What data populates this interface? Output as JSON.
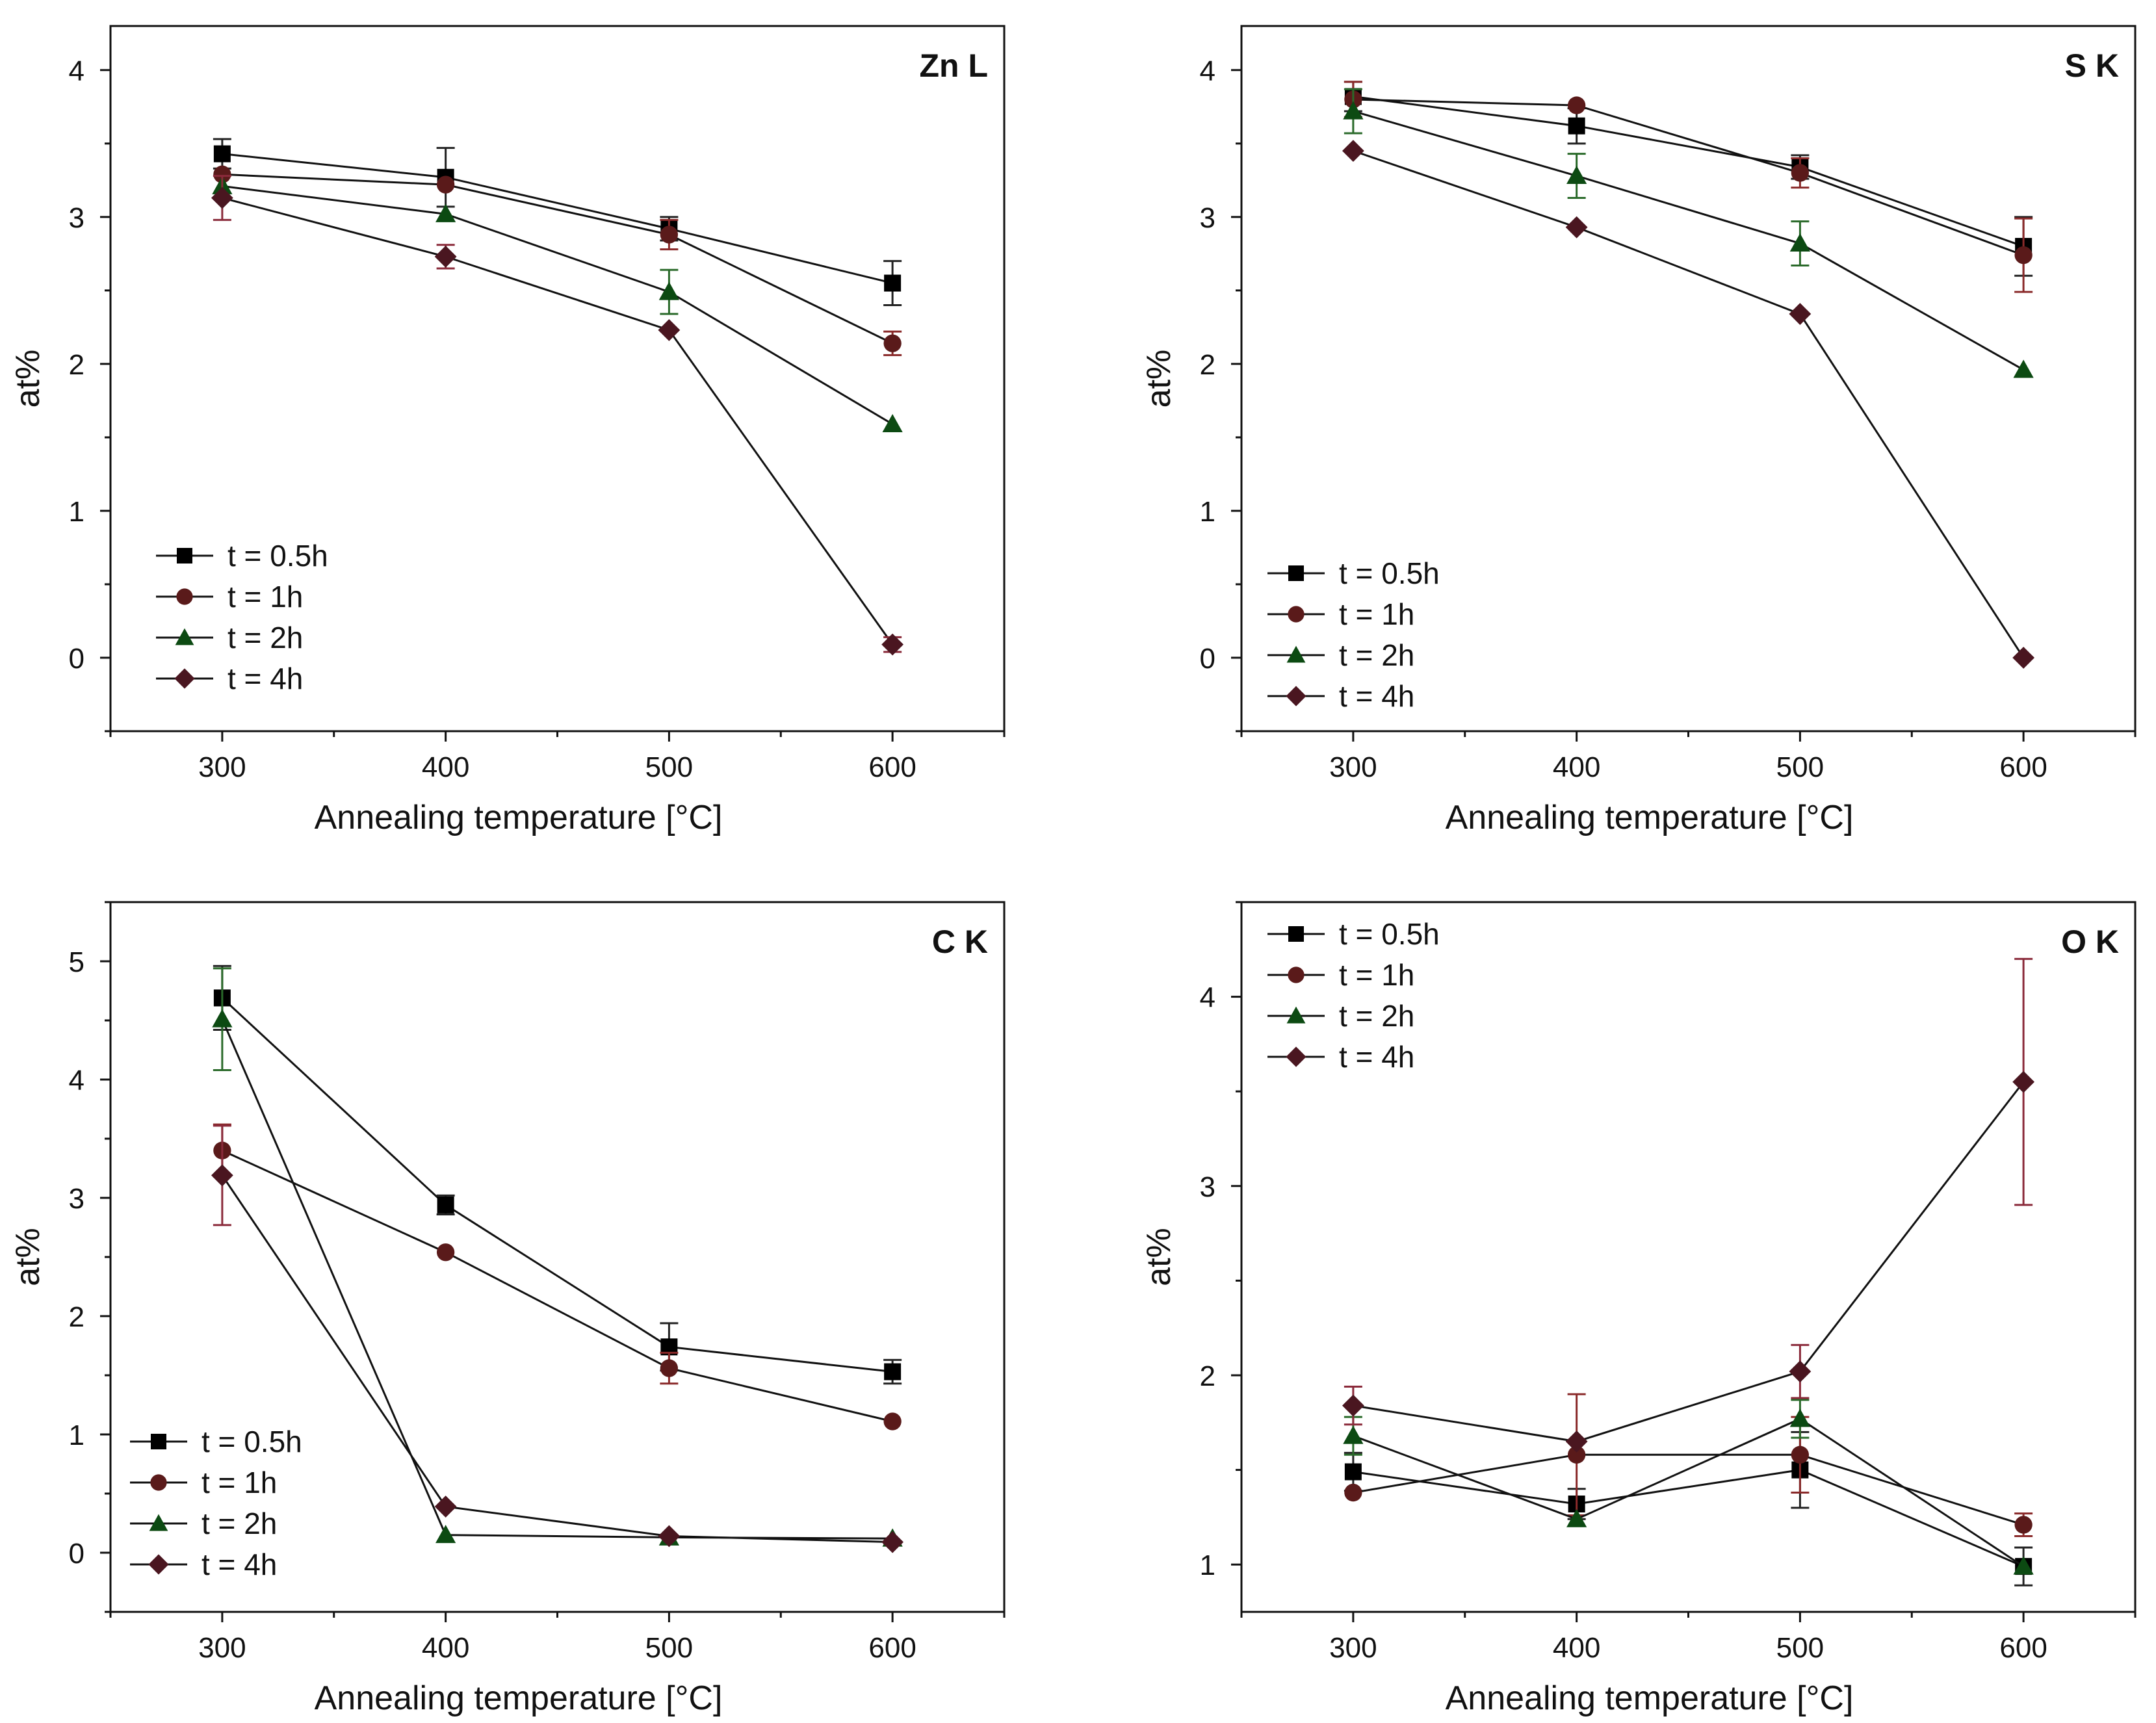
{
  "colors": {
    "t = 0.5h": "#000000",
    "t = 1h": "#5a1a1a",
    "t = 2h": "#0c4a12",
    "t = 4h": "#4a1620",
    "axis": "#111111",
    "error_0.5h": "#222222",
    "error_1h": "#8a2a2a",
    "error_2h": "#2a6a2a",
    "error_4h": "#8a2a3a"
  },
  "markers": {
    "t = 0.5h": "square",
    "t = 1h": "circle",
    "t = 2h": "triangle",
    "t = 4h": "diamond"
  },
  "chart_data": [
    {
      "type": "line",
      "title": "Zn L",
      "xlabel": "Annealing temperature [°C]",
      "ylabel": "at%",
      "x": [
        300,
        400,
        500,
        600
      ],
      "xlim": [
        250,
        650
      ],
      "ylim": [
        -0.5,
        4.3
      ],
      "xticks": [
        300,
        400,
        500,
        600
      ],
      "yticks": [
        0,
        1,
        2,
        3,
        4
      ],
      "legend": "bottom-left",
      "series": [
        {
          "name": "t = 0.5h",
          "values": [
            3.43,
            3.27,
            2.92,
            2.55
          ],
          "errors": [
            0.1,
            0.2,
            0.08,
            0.15
          ]
        },
        {
          "name": "t = 1h",
          "values": [
            3.29,
            3.22,
            2.88,
            2.14
          ],
          "errors": [
            0.0,
            0.0,
            0.1,
            0.08
          ]
        },
        {
          "name": "t = 2h",
          "values": [
            3.21,
            3.02,
            2.49,
            1.59
          ],
          "errors": [
            0.0,
            0.0,
            0.15,
            0.0
          ]
        },
        {
          "name": "t = 4h",
          "values": [
            3.13,
            2.73,
            2.23,
            0.09
          ],
          "errors": [
            0.15,
            0.08,
            0.0,
            0.05
          ]
        }
      ]
    },
    {
      "type": "line",
      "title": "S K",
      "xlabel": "Annealing temperature [°C]",
      "ylabel": "at%",
      "x": [
        300,
        400,
        500,
        600
      ],
      "xlim": [
        250,
        650
      ],
      "ylim": [
        -0.5,
        4.3
      ],
      "xticks": [
        300,
        400,
        500,
        600
      ],
      "yticks": [
        0,
        1,
        2,
        3,
        4
      ],
      "legend": "bottom-left",
      "series": [
        {
          "name": "t = 0.5h",
          "values": [
            3.82,
            3.62,
            3.34,
            2.8
          ],
          "errors": [
            0.1,
            0.12,
            0.08,
            0.2
          ]
        },
        {
          "name": "t = 1h",
          "values": [
            3.8,
            3.76,
            3.3,
            2.74
          ],
          "errors": [
            0.12,
            0.0,
            0.1,
            0.25
          ]
        },
        {
          "name": "t = 2h",
          "values": [
            3.72,
            3.28,
            2.82,
            1.96
          ],
          "errors": [
            0.15,
            0.15,
            0.15,
            0.0
          ]
        },
        {
          "name": "t = 4h",
          "values": [
            3.45,
            2.93,
            2.34,
            0.0
          ],
          "errors": [
            0.0,
            0.0,
            0.0,
            0.0
          ]
        }
      ]
    },
    {
      "type": "line",
      "title": "C K",
      "xlabel": "Annealing temperature [°C]",
      "ylabel": "at%",
      "x": [
        300,
        400,
        500,
        600
      ],
      "xlim": [
        250,
        650
      ],
      "ylim": [
        -0.5,
        5.5
      ],
      "xticks": [
        300,
        400,
        500,
        600
      ],
      "yticks": [
        0,
        1,
        2,
        3,
        4,
        5
      ],
      "legend": "bottom-left",
      "series": [
        {
          "name": "t = 0.5h",
          "values": [
            4.69,
            2.94,
            1.74,
            1.53
          ],
          "errors": [
            0.27,
            0.08,
            0.2,
            0.1
          ]
        },
        {
          "name": "t = 1h",
          "values": [
            3.4,
            2.54,
            1.56,
            1.11
          ],
          "errors": [
            0.22,
            0.0,
            0.13,
            0.0
          ]
        },
        {
          "name": "t = 2h",
          "values": [
            4.51,
            0.15,
            0.13,
            0.12
          ],
          "errors": [
            0.43,
            0.0,
            0.0,
            0.0
          ]
        },
        {
          "name": "t = 4h",
          "values": [
            3.19,
            0.39,
            0.14,
            0.09
          ],
          "errors": [
            0.42,
            0.0,
            0.0,
            0.0
          ]
        }
      ]
    },
    {
      "type": "line",
      "title": "O K",
      "xlabel": "Annealing temperature [°C]",
      "ylabel": "at%",
      "x": [
        300,
        400,
        500,
        600
      ],
      "xlim": [
        250,
        650
      ],
      "ylim": [
        0.75,
        4.5
      ],
      "xticks": [
        300,
        400,
        500,
        600
      ],
      "yticks": [
        1,
        2,
        3,
        4
      ],
      "legend": "top-left",
      "series": [
        {
          "name": "t = 0.5h",
          "values": [
            1.49,
            1.32,
            1.5,
            0.99
          ],
          "errors": [
            0.1,
            0.08,
            0.2,
            0.1
          ]
        },
        {
          "name": "t = 1h",
          "values": [
            1.38,
            1.58,
            1.58,
            1.21
          ],
          "errors": [
            0.0,
            0.32,
            0.2,
            0.06
          ]
        },
        {
          "name": "t = 2h",
          "values": [
            1.68,
            1.24,
            1.77,
            0.99
          ],
          "errors": [
            0.1,
            0.0,
            0.1,
            0.0
          ]
        },
        {
          "name": "t = 4h",
          "values": [
            1.84,
            1.65,
            2.02,
            3.55
          ],
          "errors": [
            0.1,
            0.0,
            0.14,
            0.65
          ]
        }
      ]
    }
  ]
}
